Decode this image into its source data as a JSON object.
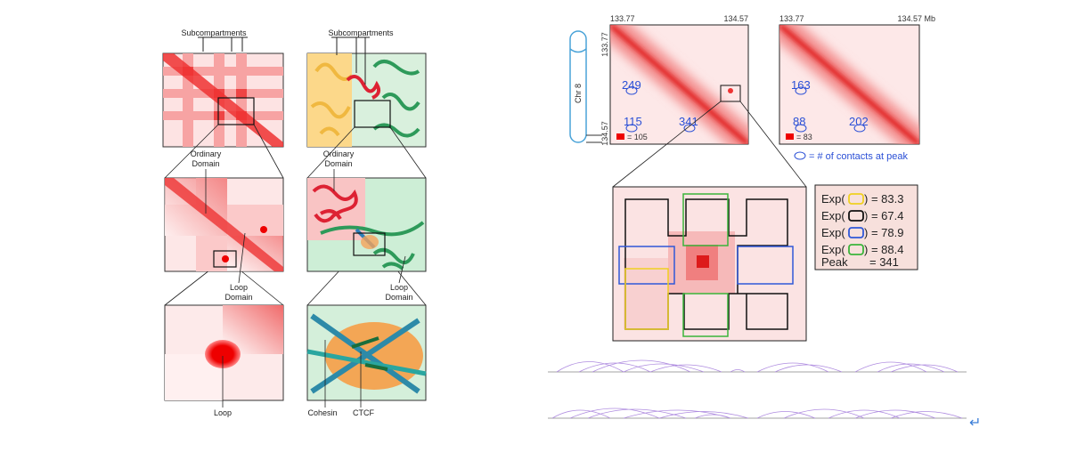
{
  "left_panel": {
    "compartment_label": "Subcompartments",
    "subcompartment_label": "Subcompartments",
    "ordinary_domain_left": [
      "Ordinary",
      "Domain"
    ],
    "ordinary_domain_right": [
      "Ordinary",
      "Domain"
    ],
    "loop_domain_left": [
      "Loop",
      "Domain"
    ],
    "loop_domain_right": [
      "Loop",
      "Domain"
    ],
    "loop_label": "Loop",
    "cohesin_label": "Cohesin",
    "ctcf_label": "CTCF"
  },
  "right_panel": {
    "map1": {
      "start": "133.77",
      "end": "134.57",
      "left_start": "133.77",
      "left_end": "134.57",
      "peaks": [
        "249",
        "115",
        "341"
      ],
      "scale": "= 105"
    },
    "map2": {
      "start": "133.77",
      "end": "134.57 Mb",
      "peaks": [
        "163",
        "88",
        "202"
      ],
      "scale": "= 83"
    },
    "chromosome": "Chr 8",
    "legend_note": "= # of contacts at peak",
    "expected": [
      {
        "prefix": "Exp(",
        "suffix": ") = 83.3"
      },
      {
        "prefix": "Exp(",
        "suffix": ") = 67.4"
      },
      {
        "prefix": "Exp(",
        "suffix": ") = 78.9"
      },
      {
        "prefix": "Exp(",
        "suffix": ") = 88.4"
      }
    ],
    "peak_label": "Peak",
    "peak_value": "= 341",
    "return_icon": "↵"
  }
}
